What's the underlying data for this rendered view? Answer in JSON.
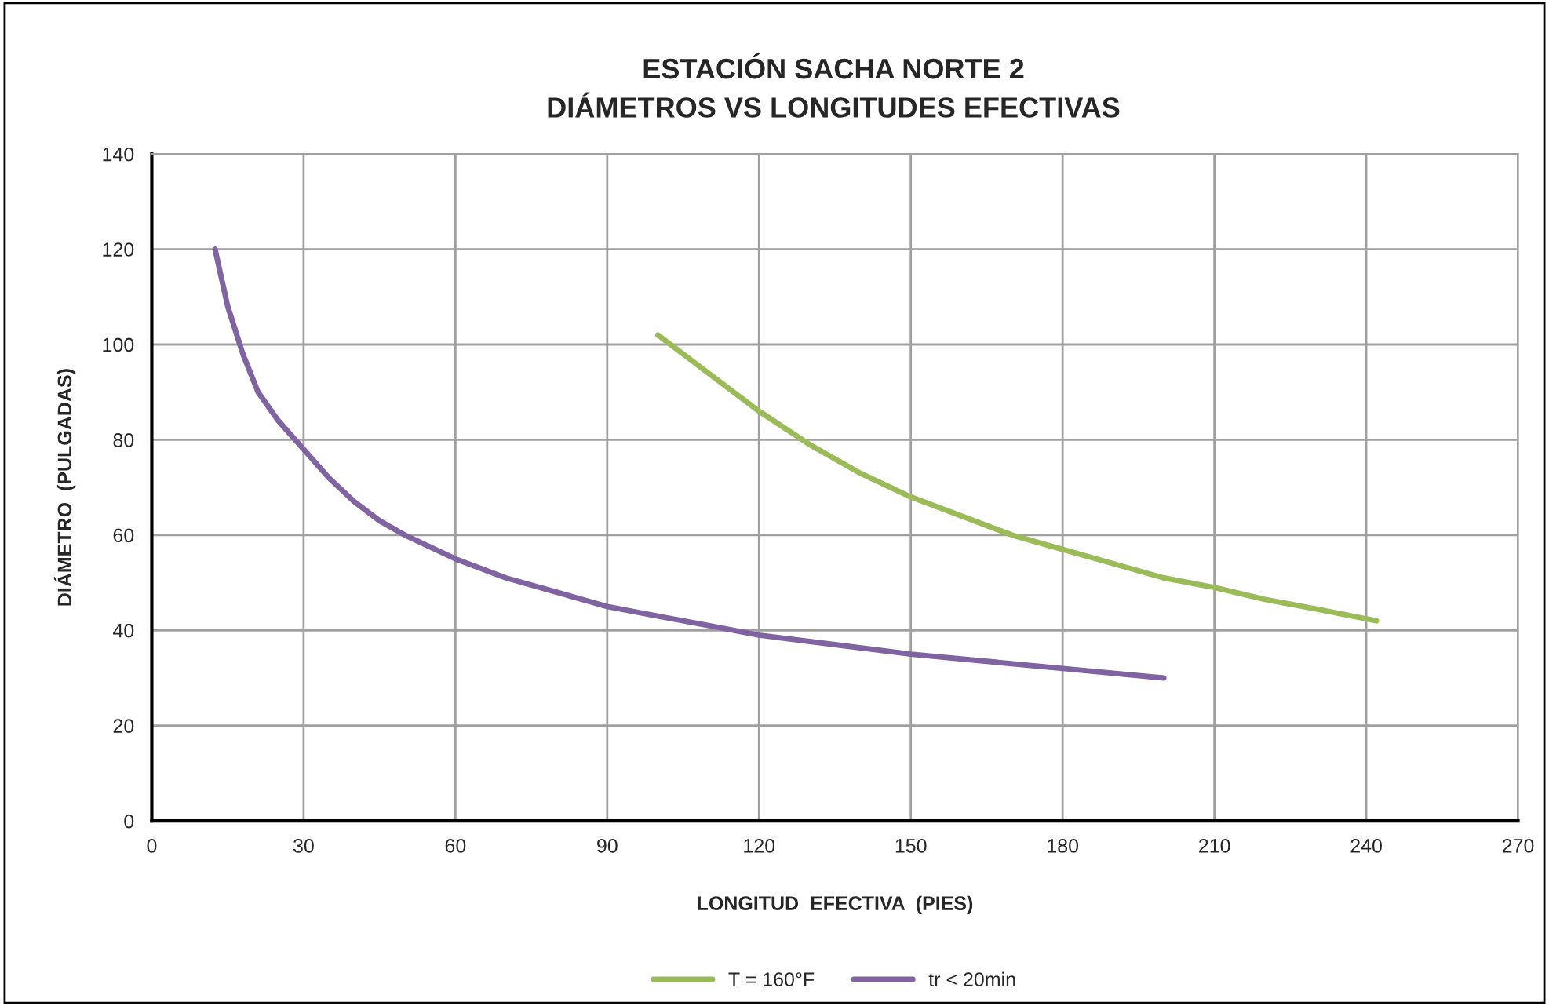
{
  "chart_data": {
    "type": "line",
    "title": "ESTACIÓN SACHA NORTE 2\nDIÁMETROS VS LONGITUDES EFECTIVAS",
    "xlabel": "LONGITUD  EFECTIVA  (PIES)",
    "ylabel": "DIÁMETRO  (PULGADAS)",
    "series": [
      {
        "name": "T = 160°F",
        "color": "#9bbb59",
        "x": [
          100,
          110,
          120,
          130,
          140,
          150,
          160,
          170,
          180,
          190,
          200,
          210,
          220,
          230,
          242
        ],
        "values": [
          102,
          94,
          86,
          79,
          73,
          68,
          64,
          60,
          57,
          54,
          51,
          49,
          46.5,
          44.5,
          42
        ]
      },
      {
        "name": "tr < 20min",
        "color": "#8064a2",
        "x": [
          12.5,
          15,
          18,
          21,
          25,
          30,
          35,
          40,
          45,
          50,
          60,
          70,
          80,
          90,
          100,
          110,
          120,
          135,
          150,
          165,
          180,
          200
        ],
        "values": [
          120,
          108,
          98,
          90,
          84,
          78,
          72,
          67,
          63,
          60,
          55,
          51,
          48,
          45,
          43,
          41,
          39,
          37,
          35,
          33.5,
          32,
          30
        ]
      }
    ],
    "xlim": [
      0,
      270
    ],
    "xticks": [
      0,
      30,
      60,
      90,
      120,
      150,
      180,
      210,
      240,
      270
    ],
    "ylim": [
      0,
      140
    ],
    "yticks": [
      0,
      20,
      40,
      60,
      80,
      100,
      120,
      140
    ],
    "grid": true,
    "legend": "bottom",
    "line_style": "solid",
    "marker": "none"
  }
}
